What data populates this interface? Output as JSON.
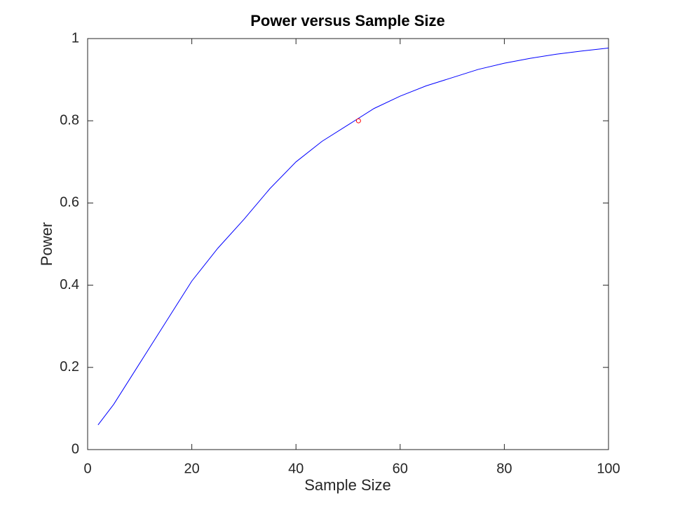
{
  "chart_data": {
    "type": "line",
    "title": "Power versus Sample Size",
    "xlabel": "Sample Size",
    "ylabel": "Power",
    "xlim": [
      0,
      100
    ],
    "ylim": [
      0,
      1
    ],
    "xticks": [
      0,
      20,
      40,
      60,
      80,
      100
    ],
    "yticks": [
      0,
      0.2,
      0.4,
      0.6,
      0.8,
      1
    ],
    "grid": false,
    "series": [
      {
        "color": "#0000ff",
        "marker": "none",
        "x": [
          2,
          5,
          10,
          15,
          20,
          25,
          30,
          35,
          40,
          45,
          50,
          55,
          60,
          65,
          70,
          75,
          80,
          85,
          90,
          95,
          100
        ],
        "values": [
          0.06,
          0.11,
          0.21,
          0.31,
          0.41,
          0.49,
          0.56,
          0.635,
          0.7,
          0.75,
          0.79,
          0.83,
          0.86,
          0.885,
          0.905,
          0.925,
          0.94,
          0.952,
          0.962,
          0.97,
          0.977
        ]
      },
      {
        "color": "#ff0000",
        "marker": "circle",
        "x": [
          52
        ],
        "values": [
          0.8
        ]
      }
    ]
  }
}
